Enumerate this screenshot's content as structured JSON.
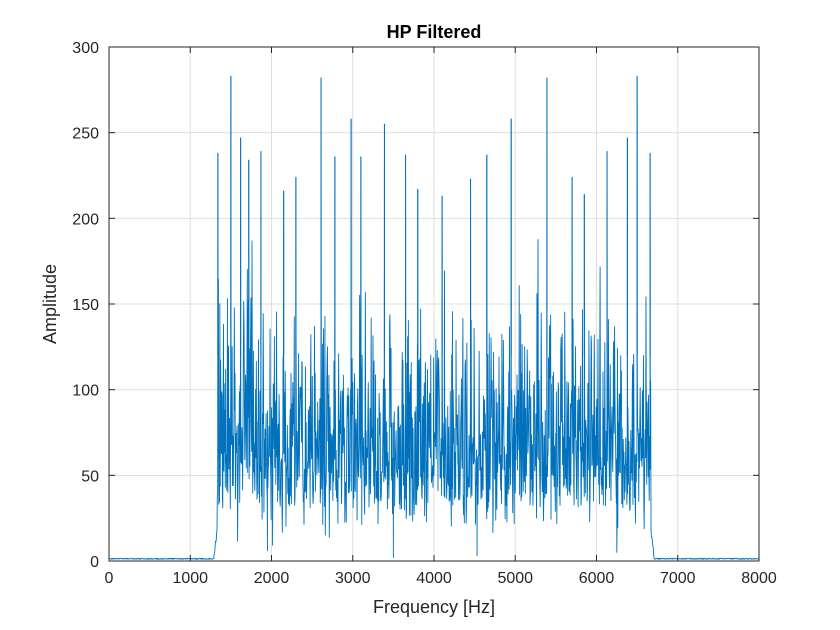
{
  "chart_data": {
    "type": "line",
    "title": "HP Filtered",
    "xlabel": "Frequency [Hz]",
    "ylabel": "Amplitude",
    "xlim": [
      0,
      8000
    ],
    "ylim": [
      0,
      300
    ],
    "xticks": [
      0,
      1000,
      2000,
      3000,
      4000,
      5000,
      6000,
      7000,
      8000
    ],
    "yticks": [
      0,
      50,
      100,
      150,
      200,
      250,
      300
    ],
    "grid": true,
    "legend": "none",
    "series_color": "#0072BD",
    "passband": [
      1330,
      6670
    ],
    "stopband_level": 1,
    "typical_band": [
      30,
      165
    ],
    "series": [
      {
        "peaks": [
          {
            "x": 1340,
            "y": 238
          },
          {
            "x": 1500,
            "y": 283
          },
          {
            "x": 1620,
            "y": 247
          },
          {
            "x": 1720,
            "y": 234
          },
          {
            "x": 1870,
            "y": 239
          },
          {
            "x": 2150,
            "y": 216
          },
          {
            "x": 2300,
            "y": 224
          },
          {
            "x": 2610,
            "y": 282
          },
          {
            "x": 2780,
            "y": 236
          },
          {
            "x": 2980,
            "y": 258
          },
          {
            "x": 3100,
            "y": 236
          },
          {
            "x": 3390,
            "y": 255
          },
          {
            "x": 3650,
            "y": 237
          },
          {
            "x": 3800,
            "y": 217
          },
          {
            "x": 4100,
            "y": 213
          },
          {
            "x": 4450,
            "y": 223
          },
          {
            "x": 4650,
            "y": 237
          },
          {
            "x": 4950,
            "y": 258
          },
          {
            "x": 5390,
            "y": 282
          },
          {
            "x": 5700,
            "y": 224
          },
          {
            "x": 5850,
            "y": 214
          },
          {
            "x": 6130,
            "y": 239
          },
          {
            "x": 6380,
            "y": 247
          },
          {
            "x": 6500,
            "y": 283
          },
          {
            "x": 6660,
            "y": 238
          }
        ],
        "dips": [
          {
            "x": 3500,
            "y": 2
          },
          {
            "x": 4530,
            "y": 3
          },
          {
            "x": 1950,
            "y": 6
          },
          {
            "x": 6250,
            "y": 5
          }
        ]
      }
    ]
  }
}
